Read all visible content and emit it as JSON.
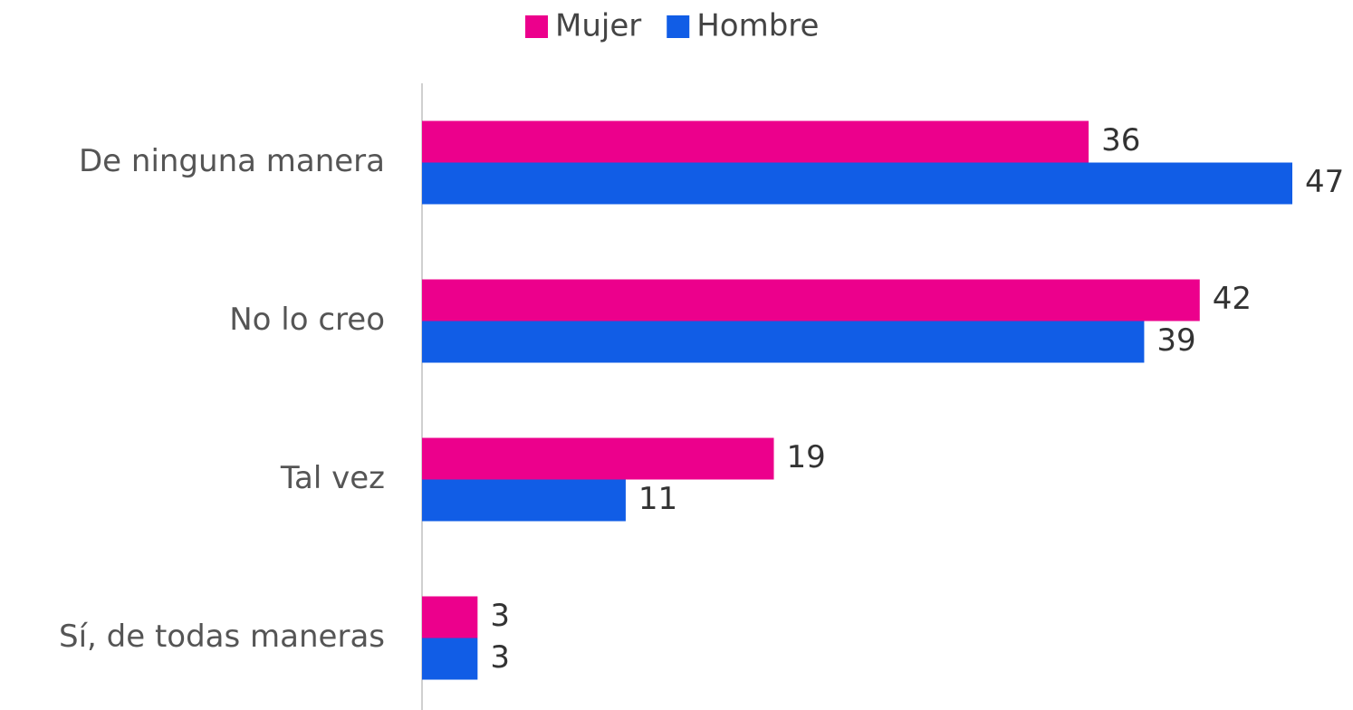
{
  "chart_data": {
    "type": "bar",
    "orientation": "horizontal",
    "categories": [
      "De ninguna manera",
      "No lo creo",
      "Tal vez",
      "Sí, de todas maneras"
    ],
    "series": [
      {
        "name": "Mujer",
        "color": "#ec008c",
        "values": [
          36,
          42,
          19,
          3
        ]
      },
      {
        "name": "Hombre",
        "color": "#115de6",
        "values": [
          47,
          39,
          11,
          3
        ]
      }
    ],
    "legend": "top"
  }
}
